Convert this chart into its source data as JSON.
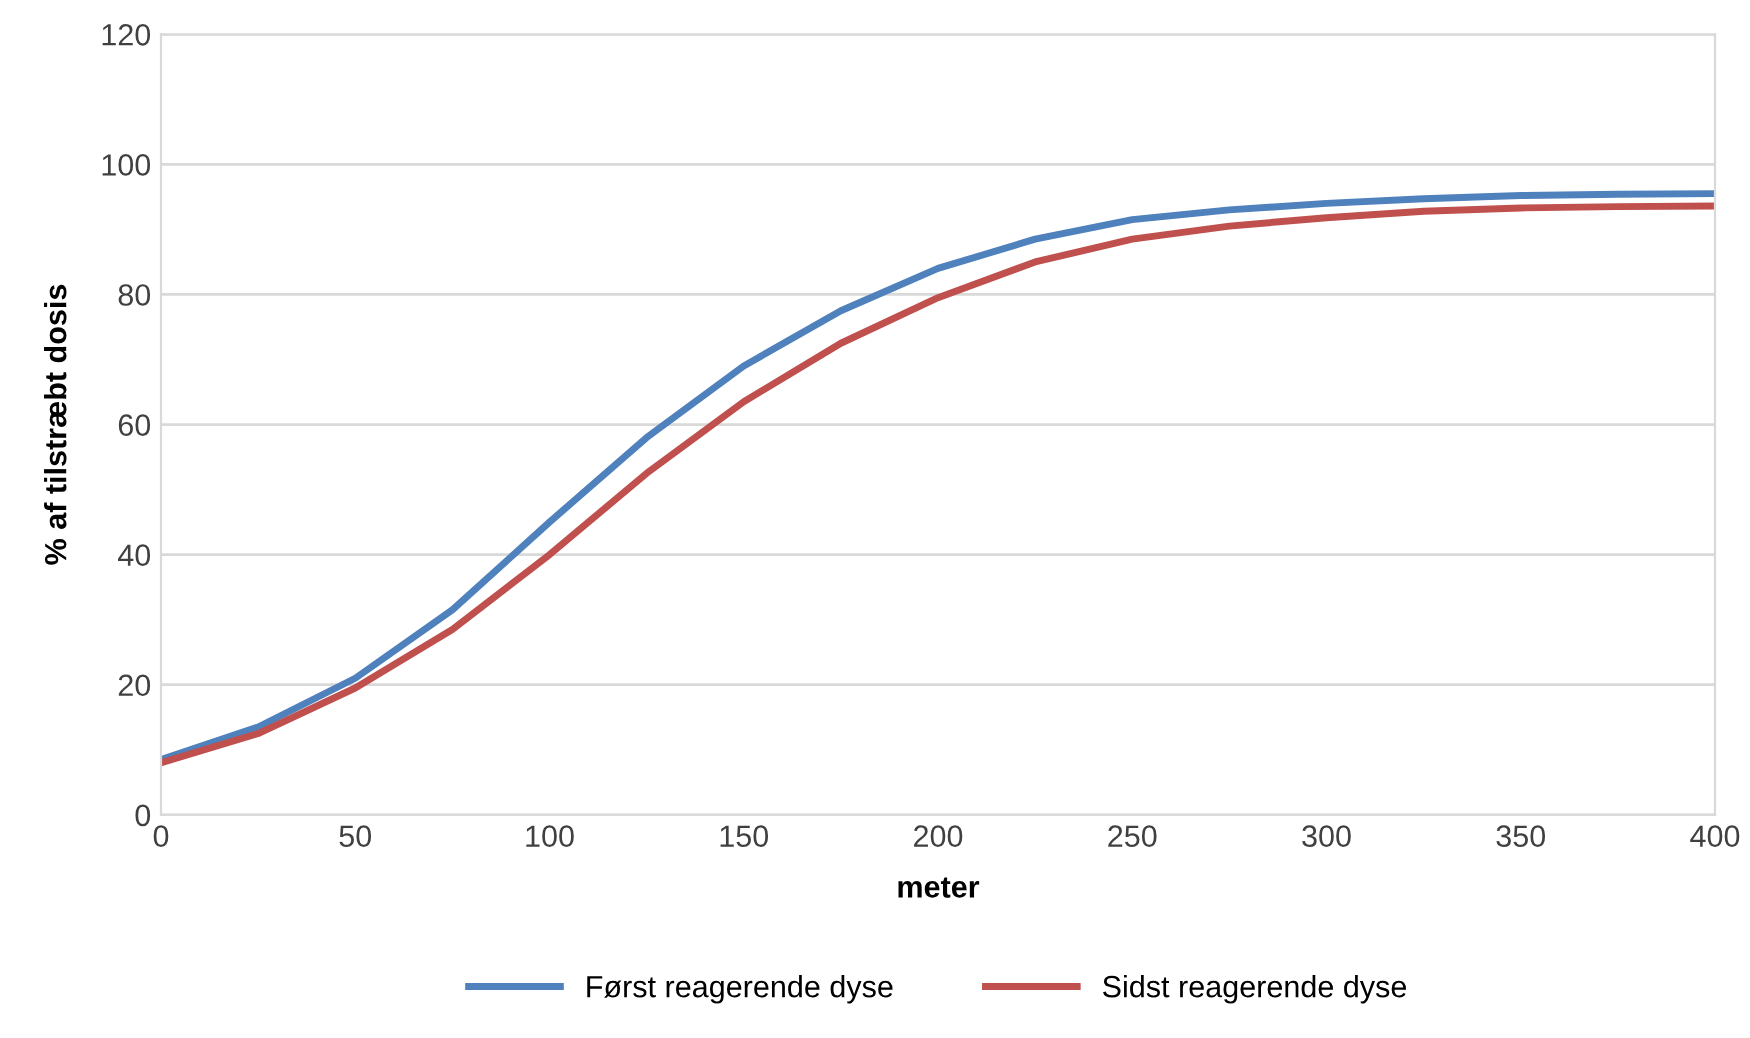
{
  "chart_data": {
    "type": "line",
    "xlabel": "meter",
    "ylabel": "% af tilstræbt dosis",
    "x": [
      0,
      25,
      50,
      75,
      100,
      125,
      150,
      175,
      200,
      225,
      250,
      275,
      300,
      325,
      350,
      375,
      400
    ],
    "series": [
      {
        "name": "Først reagerende dyse",
        "color": "#4f81bd",
        "values": [
          8.5,
          13.5,
          21,
          31.5,
          45,
          58,
          69,
          77.5,
          84,
          88.5,
          91.5,
          93,
          94,
          94.7,
          95.2,
          95.4,
          95.5
        ]
      },
      {
        "name": "Sidst reagerende dyse",
        "color": "#c0504d",
        "values": [
          8,
          12.5,
          19.5,
          28.5,
          40,
          52.5,
          63.5,
          72.5,
          79.5,
          85,
          88.5,
          90.5,
          91.8,
          92.8,
          93.3,
          93.5,
          93.6
        ]
      }
    ],
    "xlim": [
      0,
      400
    ],
    "xticks": [
      0,
      50,
      100,
      150,
      200,
      250,
      300,
      350,
      400
    ],
    "ylim": [
      0,
      120
    ],
    "yticks": [
      0,
      20,
      40,
      60,
      80,
      100,
      120
    ],
    "grid": "y",
    "legend": "bottom",
    "marker": "none",
    "line_style": "solid"
  }
}
